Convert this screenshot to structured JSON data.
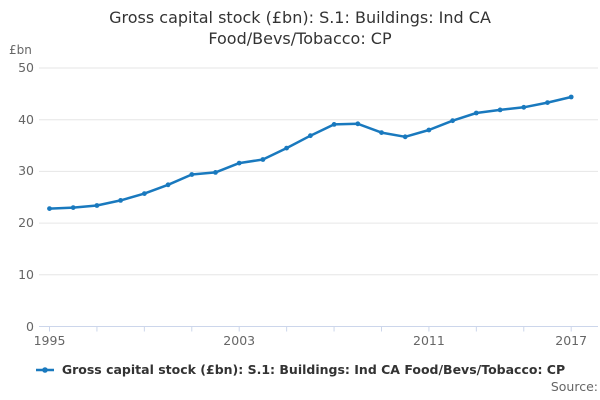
{
  "title": "Gross capital stock (£bn): S.1: Buildings: Ind CA Food/Bevs/Tobacco: CP",
  "y_unit_label": "£bn",
  "source_label": "Source:",
  "legend": {
    "label": "Gross capital stock (£bn): S.1: Buildings: Ind CA Food/Bevs/Tobacco: CP"
  },
  "colors": {
    "line": "#1979be",
    "grid": "#e6e6e6",
    "axis": "#ccd6eb",
    "muted_text": "#666666",
    "title_text": "#333333"
  },
  "chart_data": {
    "type": "line",
    "title": "Gross capital stock (£bn): S.1: Buildings: Ind CA Food/Bevs/Tobacco: CP",
    "ylabel": "£bn",
    "xlabel": "",
    "ylim": [
      0,
      50
    ],
    "yticks": [
      0,
      10,
      20,
      30,
      40,
      50
    ],
    "xtick_minor_step_years": 2,
    "xtick_labels": [
      "1995",
      "2003",
      "2011",
      "2017"
    ],
    "xtick_label_years": [
      1995,
      2003,
      2011,
      2017
    ],
    "grid": true,
    "legend_position": "bottom",
    "x": [
      1995,
      1996,
      1997,
      1998,
      1999,
      2000,
      2001,
      2002,
      2003,
      2004,
      2005,
      2006,
      2007,
      2008,
      2009,
      2010,
      2011,
      2012,
      2013,
      2014,
      2015,
      2016,
      2017
    ],
    "series": [
      {
        "name": "Gross capital stock (£bn): S.1: Buildings: Ind CA Food/Bevs/Tobacco: CP",
        "values": [
          22.8,
          23.0,
          23.4,
          24.4,
          25.7,
          27.4,
          29.4,
          29.8,
          31.6,
          32.3,
          34.5,
          36.9,
          39.1,
          39.2,
          37.5,
          36.7,
          38.0,
          39.8,
          41.3,
          41.9,
          42.4,
          43.3,
          44.4
        ]
      }
    ]
  }
}
